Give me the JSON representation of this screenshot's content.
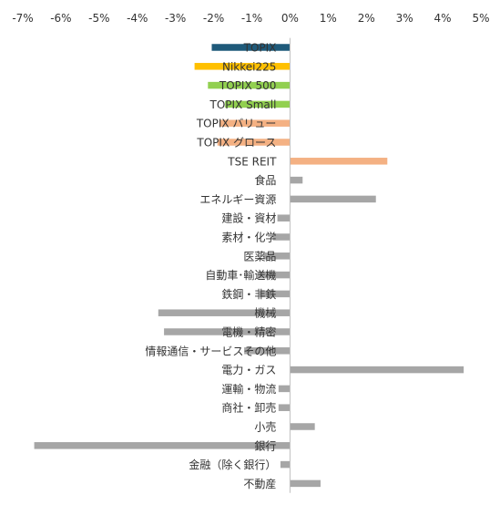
{
  "chart_data": {
    "type": "bar",
    "orientation": "horizontal",
    "x_axis_position": "top",
    "grid": false,
    "xlim": [
      -7,
      5
    ],
    "xticks": [
      -7,
      -6,
      -5,
      -4,
      -3,
      -2,
      -1,
      0,
      1,
      2,
      3,
      4,
      5
    ],
    "xtick_labels": [
      "-7%",
      "-6%",
      "-5%",
      "-4%",
      "-3%",
      "-2%",
      "-1%",
      "0%",
      "1%",
      "2%",
      "3%",
      "4%",
      "5%"
    ],
    "categories": [
      "TOPIX",
      "Nikkei225",
      "TOPIX 500",
      "TOPIX Small",
      "TOPIX バリュー",
      "TOPIX グロース",
      "TSE REIT",
      "食品",
      "エネルギー資源",
      "建設・資材",
      "素材・化学",
      "医薬品",
      "自動車･輸送機",
      "鉄鋼・非鉄",
      "機械",
      "電機・精密",
      "情報通信・サービスその他",
      "電力・ガス",
      "運輸・物流",
      "商社・卸売",
      "小売",
      "銀行",
      "金融（除く銀行）",
      "不動産"
    ],
    "values": [
      -2.05,
      -2.5,
      -2.15,
      -1.7,
      -1.85,
      -1.9,
      2.55,
      0.33,
      2.25,
      -0.33,
      -0.45,
      -0.7,
      -0.85,
      -0.8,
      -3.45,
      -3.3,
      -1.2,
      4.55,
      -0.3,
      -0.3,
      0.65,
      -6.7,
      -0.25,
      0.8
    ],
    "colors": [
      "#1f5a7a",
      "#ffc000",
      "#92d050",
      "#92d050",
      "#f4b183",
      "#f4b183",
      "#f4b183",
      "#a6a6a6",
      "#a6a6a6",
      "#a6a6a6",
      "#a6a6a6",
      "#a6a6a6",
      "#a6a6a6",
      "#a6a6a6",
      "#a6a6a6",
      "#a6a6a6",
      "#a6a6a6",
      "#a6a6a6",
      "#a6a6a6",
      "#a6a6a6",
      "#a6a6a6",
      "#a6a6a6",
      "#a6a6a6",
      "#a6a6a6"
    ]
  }
}
